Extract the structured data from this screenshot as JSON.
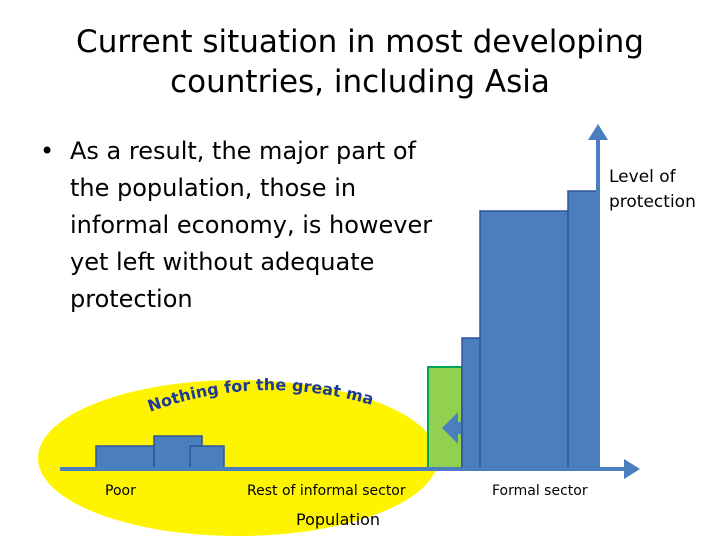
{
  "slide": {
    "title_line1": "Current situation in most developing",
    "title_line2": "countries, including Asia",
    "bullet": "As a result, the major part of the population, those in informal economy, is however yet left without adequate protection"
  },
  "diagram": {
    "curved_caption": "Nothing for the great majority",
    "y_axis_label_line1": "Level of",
    "y_axis_label_line2": "protection",
    "x_axis_title": "Population",
    "group_labels": [
      "Poor",
      "Rest of informal sector",
      "Formal sector"
    ],
    "colors": {
      "oval": "#FFF400",
      "bars": "#4A7EBE",
      "bar_outline": "#2F5597",
      "axis": "#4A7EBE",
      "green_block": "#92D050",
      "green_outline": "#00A651",
      "caption": "#1F3A93"
    }
  }
}
